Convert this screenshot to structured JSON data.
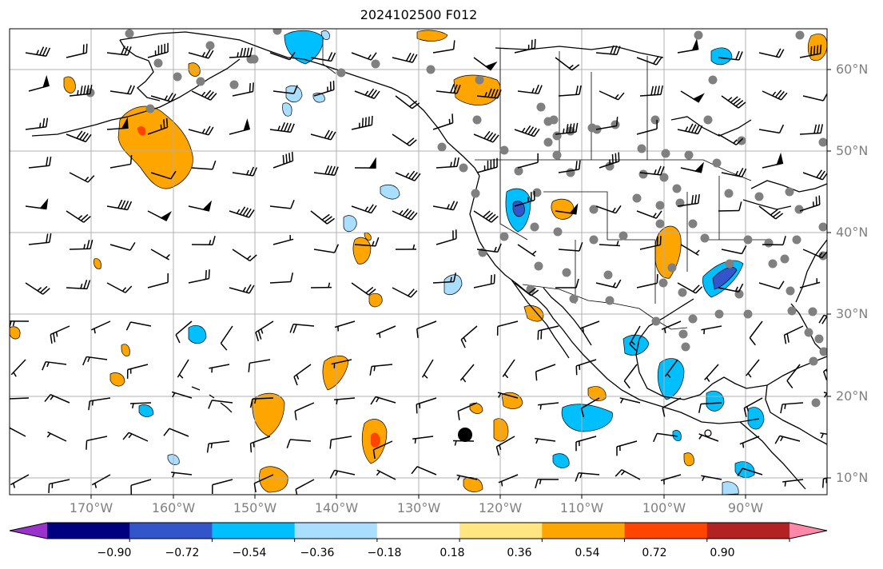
{
  "title": "2024102500 F012",
  "lat_labels": [
    "60°N",
    "50°N",
    "40°N",
    "30°N",
    "20°N",
    "10°N"
  ],
  "lon_labels": [
    "170°W",
    "160°W",
    "150°W",
    "140°W",
    "130°W",
    "120°W",
    "110°W",
    "100°W",
    "90°W"
  ],
  "colorbar": {
    "tick_labels": [
      "−0.90",
      "−0.72",
      "−0.54",
      "−0.36",
      "−0.18",
      "0.18",
      "0.36",
      "0.54",
      "0.72",
      "0.90"
    ],
    "colors": [
      "#9933cc",
      "#000080",
      "#3355cc",
      "#00bfff",
      "#aadeff",
      "#ffffff",
      "#ffe680",
      "#ffa500",
      "#ff4500",
      "#b22222",
      "#ff88aa"
    ]
  },
  "map": {
    "projection": "lat-lon",
    "lon_range": [
      -178,
      -78
    ],
    "lat_range": [
      8,
      65
    ],
    "grid": true,
    "fill_colors": {
      "ocean": "#ffffff",
      "coast": "#000000",
      "grid": "#b0b0b0",
      "station_marker": "#808080",
      "orange": "#ffa500",
      "light_yellow": "#ffe680",
      "light_blue": "#aadeff",
      "deep_sky_blue": "#00bfff",
      "royal_blue": "#3355cc",
      "red_orange": "#ff4500"
    }
  }
}
